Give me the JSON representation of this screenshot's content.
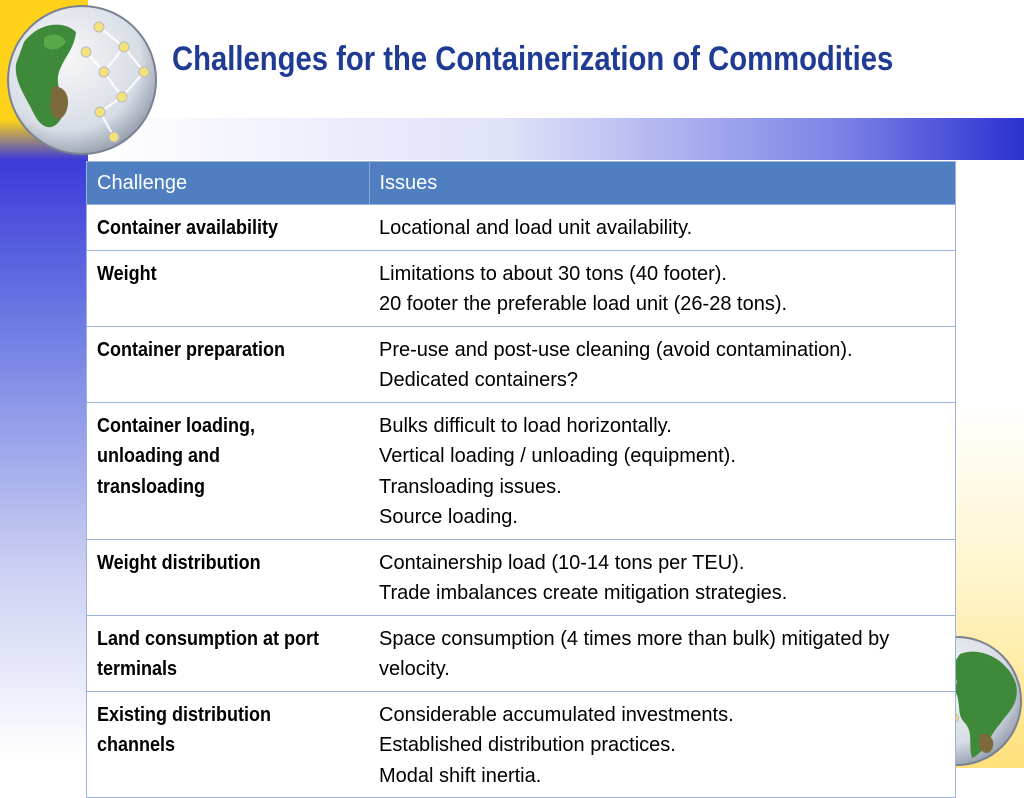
{
  "slide": {
    "title": "Challenges for the Containerization of Commodities"
  },
  "table": {
    "headers": [
      "Challenge",
      "Issues"
    ],
    "rows": [
      {
        "challenge": "Container availability",
        "issues": [
          "Locational and load unit availability."
        ]
      },
      {
        "challenge": "Weight",
        "issues": [
          "Limitations to about 30 tons (40 footer).",
          "20 footer the preferable load unit (26-28 tons)."
        ]
      },
      {
        "challenge": "Container preparation",
        "issues": [
          "Pre-use and post-use cleaning (avoid contamination).",
          "Dedicated containers?"
        ]
      },
      {
        "challenge": "Container loading, unloading and transloading",
        "issues": [
          "Bulks difficult to load horizontally.",
          "Vertical loading / unloading (equipment).",
          "Transloading issues.",
          "Source loading."
        ]
      },
      {
        "challenge": "Weight distribution",
        "issues": [
          "Containership load (10-14 tons per TEU).",
          "Trade imbalances create mitigation strategies."
        ]
      },
      {
        "challenge": "Land consumption at port terminals",
        "issues": [
          "Space consumption (4 times more than bulk) mitigated by",
          "velocity."
        ]
      },
      {
        "challenge": "Existing distribution channels",
        "issues": [
          "Considerable accumulated investments.",
          "Established distribution practices.",
          "Modal shift inertia."
        ]
      }
    ]
  },
  "decor": {
    "top_globe": "globe-network-icon",
    "bottom_globe": "globe-network-icon",
    "colors": {
      "yellow": "#ffd21a",
      "blue": "#2b31d0",
      "header_blue": "#4f7fc0",
      "title": "#1f3b94"
    }
  }
}
